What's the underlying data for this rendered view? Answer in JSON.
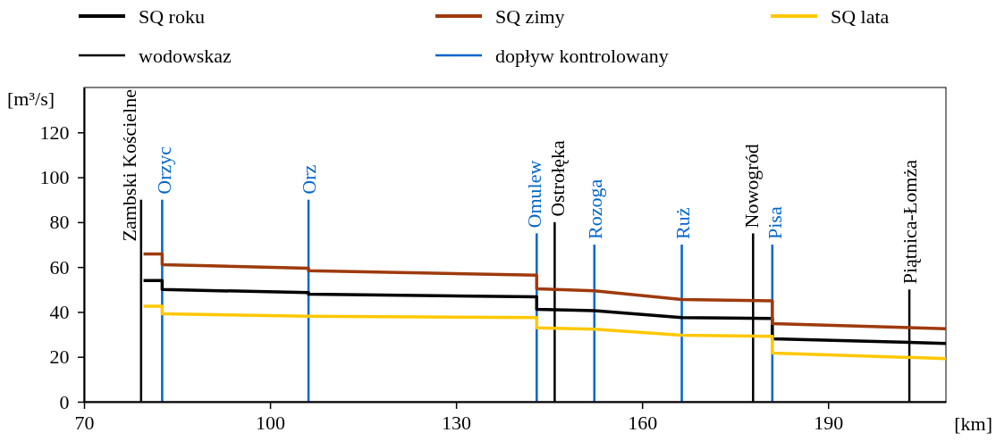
{
  "chart_data": {
    "type": "line",
    "xlabel": "[km]",
    "ylabel": "[m³/s]",
    "xlim": [
      70,
      209
    ],
    "xticks": [
      70,
      100,
      130,
      160,
      190
    ],
    "ylim": [
      0,
      140
    ],
    "yticks": [
      0,
      20,
      40,
      60,
      80,
      100,
      120
    ],
    "grid": false,
    "legend": "top",
    "marker": "none",
    "line_style": "solid",
    "series": [
      {
        "name": "SQ roku",
        "color": "#000000",
        "x": [
          79.6,
          82.6,
          82.6,
          106.2,
          106.2,
          143,
          143,
          152.3,
          166.4,
          181,
          181,
          209
        ],
        "values": [
          54,
          54,
          50,
          48.6,
          47.9,
          46.7,
          41.2,
          40.6,
          37.5,
          37.1,
          28,
          26
        ]
      },
      {
        "name": "SQ zimy",
        "color": "#9e3a0c",
        "x": [
          79.6,
          82.6,
          82.6,
          106.2,
          106.2,
          143,
          143,
          152.3,
          166.4,
          181,
          181,
          209
        ],
        "values": [
          65.8,
          65.8,
          61.1,
          59.5,
          58.4,
          56.4,
          50.3,
          49.4,
          45.5,
          44.9,
          34.8,
          32.5
        ]
      },
      {
        "name": "SQ lata",
        "color": "#ffc800",
        "x": [
          79.6,
          82.6,
          82.6,
          106.2,
          106.2,
          143,
          143,
          152.3,
          166.4,
          181,
          181,
          209
        ],
        "values": [
          42.6,
          42.6,
          39.2,
          38.1,
          38.1,
          37.5,
          32.9,
          32.3,
          29.6,
          29.1,
          21.7,
          19.2
        ]
      },
      {
        "name": "wodowskaz",
        "type": "bar",
        "color": "#000000",
        "x": [
          79.2,
          145.9,
          177.9,
          203.1
        ],
        "values": [
          90,
          80,
          75,
          50
        ]
      },
      {
        "name": "dopływ kontrolowany",
        "type": "bar",
        "color": "#0066cc",
        "x": [
          82.6,
          106.2,
          143,
          152.3,
          166.4,
          181
        ],
        "values": [
          90,
          90,
          75,
          70,
          70,
          70
        ]
      }
    ],
    "annotations": [
      {
        "text": "Zambski Kościelne",
        "x": 79.2,
        "y": 90
      },
      {
        "text": "Orzyc",
        "x": 82.6,
        "y": 90
      },
      {
        "text": "Orz",
        "x": 106.2,
        "y": 90
      },
      {
        "text": "Omulew",
        "x": 143,
        "y": 75
      },
      {
        "text": "Ostrołęka",
        "x": 145.9,
        "y": 80
      },
      {
        "text": "Rozoga",
        "x": 152.3,
        "y": 70
      },
      {
        "text": "Ruż",
        "x": 166.4,
        "y": 70
      },
      {
        "text": "Nowogród",
        "x": 177.9,
        "y": 75
      },
      {
        "text": "Pisa",
        "x": 181,
        "y": 70
      },
      {
        "text": "Piątnica-Łomża",
        "x": 203.1,
        "y": 50
      }
    ]
  }
}
